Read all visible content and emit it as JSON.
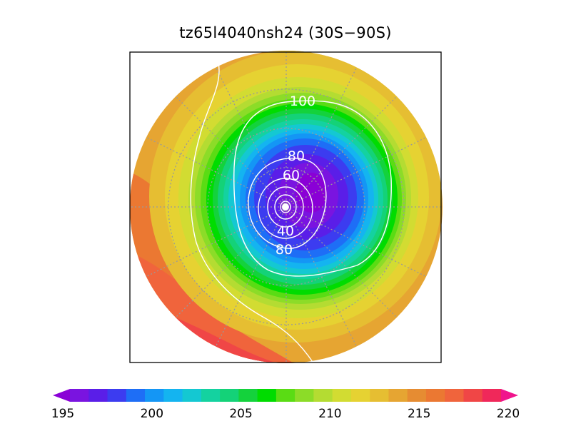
{
  "title": "tz65l4040nsh24 (30S−90S)",
  "contour_labels": [
    "100",
    "80",
    "60",
    "40",
    "80"
  ],
  "colorbar": {
    "tick_labels": [
      "195",
      "200",
      "205",
      "210",
      "215",
      "220"
    ],
    "min": 195,
    "max": 220,
    "step": 1,
    "colors": [
      "#8a00d6",
      "#7a14e0",
      "#5a1ee8",
      "#3c3cf0",
      "#1e6ef6",
      "#1496f5",
      "#14b4f0",
      "#14c8d2",
      "#14d2a0",
      "#14d278",
      "#14d23c",
      "#00dc00",
      "#5adc14",
      "#8cdc28",
      "#b4dc32",
      "#d2dc32",
      "#e6d232",
      "#e6be32",
      "#e6a532",
      "#e68c32",
      "#eb7832",
      "#f0643c",
      "#f04646",
      "#f0285a",
      "#f0148c"
    ]
  }
}
